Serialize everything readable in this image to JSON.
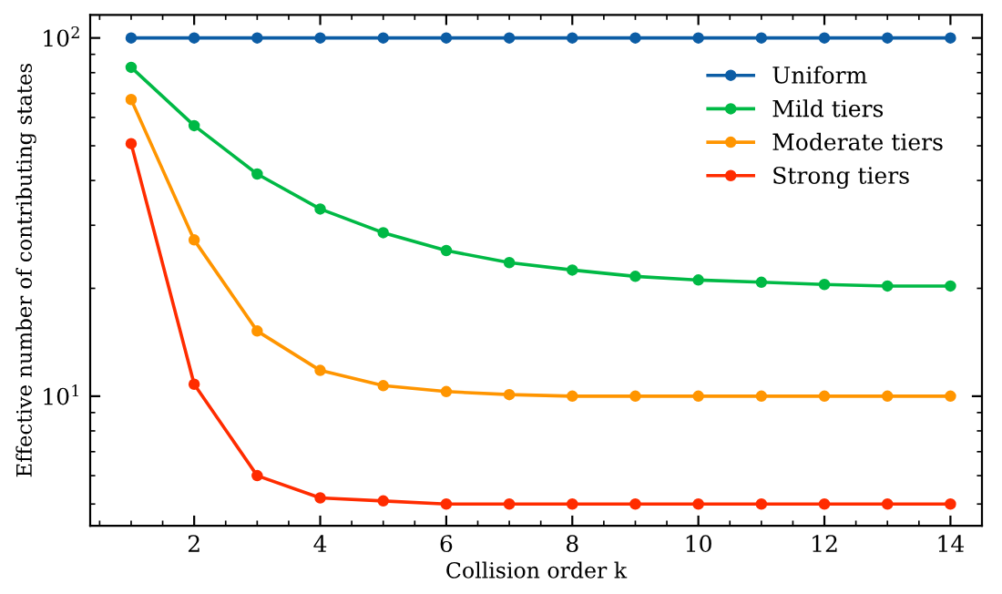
{
  "chart_data": {
    "type": "line",
    "xlabel": "Collision order k",
    "ylabel": "Effective number of contributing states",
    "x": [
      1,
      2,
      3,
      4,
      5,
      6,
      7,
      8,
      9,
      10,
      11,
      12,
      13,
      14
    ],
    "series": [
      {
        "name": "Uniform",
        "color": "#0c5da5",
        "values": [
          100,
          100,
          100,
          100,
          100,
          100,
          100,
          100,
          100,
          100,
          100,
          100,
          100,
          100
        ]
      },
      {
        "name": "Mild tiers",
        "color": "#00b945",
        "values": [
          82.8,
          56.9,
          41.7,
          33.3,
          28.6,
          25.5,
          23.6,
          22.5,
          21.6,
          21.1,
          20.8,
          20.5,
          20.3,
          20.3
        ]
      },
      {
        "name": "Moderate tiers",
        "color": "#ff9500",
        "values": [
          67.3,
          27.3,
          15.2,
          11.8,
          10.7,
          10.3,
          10.1,
          10.0,
          10.0,
          10.0,
          10.0,
          10.0,
          10.0,
          10.0
        ]
      },
      {
        "name": "Strong tiers",
        "color": "#ff2c00",
        "values": [
          50.7,
          10.8,
          6.0,
          5.2,
          5.1,
          5.0,
          5.0,
          5.0,
          5.0,
          5.0,
          5.0,
          5.0,
          5.0,
          5.0
        ]
      }
    ],
    "log": "y",
    "xlim": [
      0.35,
      14.5
    ],
    "ylim": [
      4.35,
      116
    ],
    "xticks": [
      2,
      4,
      6,
      8,
      10,
      12,
      14
    ],
    "yticks": [
      {
        "value": 10,
        "label": "10$^{1}$"
      },
      {
        "value": 100,
        "label": "10$^{2}$"
      }
    ],
    "marker": "circle",
    "line_style": "solid",
    "legend": "top right",
    "grid": false
  }
}
